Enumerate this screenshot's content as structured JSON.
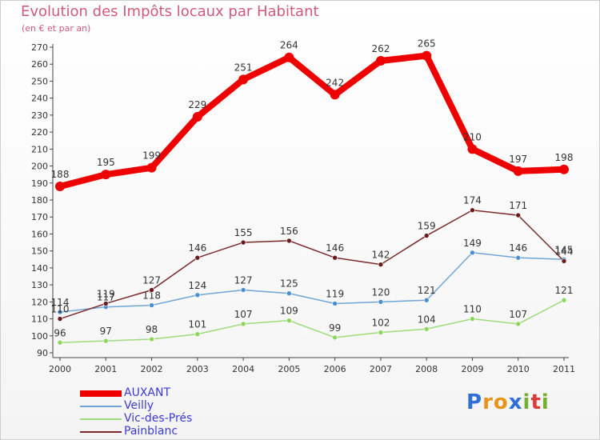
{
  "chart_data": {
    "type": "line",
    "title": "Evolution des Impôts locaux par Habitant",
    "subtitle": "(en € et par an)",
    "x": [
      "2000",
      "2001",
      "2002",
      "2003",
      "2004",
      "2005",
      "2006",
      "2007",
      "2008",
      "2009",
      "2010",
      "2011"
    ],
    "ylim": [
      90,
      270
    ],
    "yticks": [
      90,
      100,
      110,
      120,
      130,
      140,
      150,
      160,
      170,
      180,
      190,
      200,
      210,
      220,
      230,
      240,
      250,
      260,
      270
    ],
    "grid": false,
    "legend_position": "bottom-left",
    "series": [
      {
        "name": "AUXANT",
        "color": "#ee0000",
        "values": [
          188,
          195,
          199,
          229,
          251,
          264,
          242,
          262,
          265,
          210,
          197,
          198
        ]
      },
      {
        "name": "Veilly",
        "color": "#6fa6d6",
        "values": [
          114,
          117,
          118,
          124,
          127,
          125,
          119,
          120,
          121,
          149,
          146,
          145
        ]
      },
      {
        "name": "Vic-des-Prés",
        "color": "#9edb7a",
        "values": [
          96,
          97,
          98,
          101,
          107,
          109,
          99,
          102,
          104,
          110,
          107,
          121
        ]
      },
      {
        "name": "Painblanc",
        "color": "#7a2a2a",
        "values": [
          110,
          119,
          127,
          146,
          155,
          156,
          146,
          142,
          159,
          174,
          171,
          144
        ]
      }
    ]
  },
  "brand": {
    "letters": [
      "P",
      "r",
      "o",
      "x",
      "i",
      "t",
      "i"
    ]
  }
}
